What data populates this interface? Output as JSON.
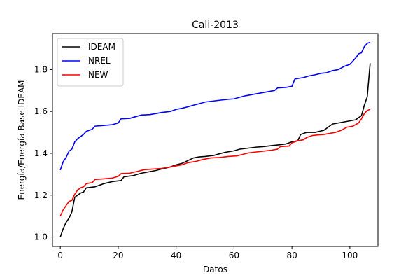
{
  "chart_data": {
    "type": "line",
    "title": "Cali-2013",
    "xlabel": "Datos",
    "ylabel": "Energía/Energía Base IDEAM",
    "xlim": [
      -2.7,
      109.7
    ],
    "ylim": [
      0.955,
      1.972
    ],
    "xticks": [
      0,
      20,
      40,
      60,
      80,
      100
    ],
    "yticks": [
      1.0,
      1.2,
      1.4,
      1.6,
      1.8
    ],
    "ytick_labels": [
      "1.0",
      "1.2",
      "1.4",
      "1.6",
      "1.8"
    ],
    "grid": false,
    "legend_position": "upper-left",
    "series": [
      {
        "name": "IDEAM",
        "color": "#000000",
        "points": [
          [
            0,
            1.0
          ],
          [
            1,
            1.04
          ],
          [
            2,
            1.07
          ],
          [
            3,
            1.09
          ],
          [
            4,
            1.12
          ],
          [
            5,
            1.19
          ],
          [
            6,
            1.2
          ],
          [
            7,
            1.21
          ],
          [
            8,
            1.215
          ],
          [
            9,
            1.235
          ],
          [
            12,
            1.24
          ],
          [
            15,
            1.255
          ],
          [
            18,
            1.265
          ],
          [
            21,
            1.27
          ],
          [
            22,
            1.288
          ],
          [
            25,
            1.293
          ],
          [
            28,
            1.305
          ],
          [
            30,
            1.31
          ],
          [
            33,
            1.318
          ],
          [
            35,
            1.325
          ],
          [
            38,
            1.335
          ],
          [
            40,
            1.345
          ],
          [
            42,
            1.352
          ],
          [
            44,
            1.365
          ],
          [
            46,
            1.378
          ],
          [
            48,
            1.383
          ],
          [
            50,
            1.385
          ],
          [
            53,
            1.39
          ],
          [
            55,
            1.398
          ],
          [
            57,
            1.405
          ],
          [
            60,
            1.412
          ],
          [
            62,
            1.42
          ],
          [
            65,
            1.425
          ],
          [
            68,
            1.43
          ],
          [
            70,
            1.432
          ],
          [
            73,
            1.437
          ],
          [
            75,
            1.44
          ],
          [
            78,
            1.445
          ],
          [
            80,
            1.455
          ],
          [
            82,
            1.46
          ],
          [
            83,
            1.49
          ],
          [
            85,
            1.5
          ],
          [
            88,
            1.5
          ],
          [
            91,
            1.51
          ],
          [
            93,
            1.53
          ],
          [
            94,
            1.54
          ],
          [
            96,
            1.545
          ],
          [
            98,
            1.55
          ],
          [
            100,
            1.555
          ],
          [
            102,
            1.56
          ],
          [
            104,
            1.58
          ],
          [
            105,
            1.63
          ],
          [
            106,
            1.67
          ],
          [
            107,
            1.83
          ]
        ]
      },
      {
        "name": "NREL",
        "color": "#0000ff",
        "points": [
          [
            0,
            1.32
          ],
          [
            1,
            1.36
          ],
          [
            2,
            1.38
          ],
          [
            3,
            1.41
          ],
          [
            4,
            1.42
          ],
          [
            5,
            1.455
          ],
          [
            6,
            1.47
          ],
          [
            7,
            1.48
          ],
          [
            8,
            1.49
          ],
          [
            9,
            1.505
          ],
          [
            11,
            1.515
          ],
          [
            12,
            1.53
          ],
          [
            15,
            1.533
          ],
          [
            18,
            1.537
          ],
          [
            20,
            1.545
          ],
          [
            21,
            1.565
          ],
          [
            24,
            1.567
          ],
          [
            26,
            1.575
          ],
          [
            28,
            1.583
          ],
          [
            31,
            1.585
          ],
          [
            33,
            1.59
          ],
          [
            35,
            1.595
          ],
          [
            38,
            1.6
          ],
          [
            40,
            1.61
          ],
          [
            42,
            1.615
          ],
          [
            44,
            1.622
          ],
          [
            46,
            1.63
          ],
          [
            48,
            1.637
          ],
          [
            50,
            1.645
          ],
          [
            53,
            1.65
          ],
          [
            56,
            1.655
          ],
          [
            58,
            1.658
          ],
          [
            60,
            1.66
          ],
          [
            62,
            1.668
          ],
          [
            64,
            1.675
          ],
          [
            66,
            1.68
          ],
          [
            68,
            1.685
          ],
          [
            70,
            1.69
          ],
          [
            72,
            1.695
          ],
          [
            74,
            1.7
          ],
          [
            75,
            1.712
          ],
          [
            78,
            1.715
          ],
          [
            80,
            1.72
          ],
          [
            81,
            1.755
          ],
          [
            84,
            1.762
          ],
          [
            86,
            1.77
          ],
          [
            88,
            1.775
          ],
          [
            90,
            1.782
          ],
          [
            92,
            1.785
          ],
          [
            94,
            1.795
          ],
          [
            96,
            1.8
          ],
          [
            98,
            1.815
          ],
          [
            100,
            1.825
          ],
          [
            101,
            1.84
          ],
          [
            102,
            1.855
          ],
          [
            103,
            1.875
          ],
          [
            104,
            1.88
          ],
          [
            105,
            1.91
          ],
          [
            106,
            1.925
          ],
          [
            107,
            1.93
          ]
        ]
      },
      {
        "name": "NEW",
        "color": "#ff0000",
        "points": [
          [
            0,
            1.1
          ],
          [
            1,
            1.13
          ],
          [
            2,
            1.15
          ],
          [
            3,
            1.17
          ],
          [
            4,
            1.175
          ],
          [
            5,
            1.205
          ],
          [
            6,
            1.225
          ],
          [
            7,
            1.235
          ],
          [
            8,
            1.24
          ],
          [
            9,
            1.255
          ],
          [
            11,
            1.26
          ],
          [
            12,
            1.275
          ],
          [
            15,
            1.278
          ],
          [
            18,
            1.282
          ],
          [
            20,
            1.29
          ],
          [
            21,
            1.303
          ],
          [
            24,
            1.305
          ],
          [
            27,
            1.315
          ],
          [
            29,
            1.322
          ],
          [
            32,
            1.325
          ],
          [
            35,
            1.328
          ],
          [
            38,
            1.335
          ],
          [
            40,
            1.34
          ],
          [
            42,
            1.345
          ],
          [
            44,
            1.355
          ],
          [
            47,
            1.362
          ],
          [
            49,
            1.37
          ],
          [
            52,
            1.378
          ],
          [
            55,
            1.38
          ],
          [
            58,
            1.385
          ],
          [
            61,
            1.388
          ],
          [
            63,
            1.395
          ],
          [
            65,
            1.402
          ],
          [
            68,
            1.407
          ],
          [
            70,
            1.41
          ],
          [
            73,
            1.415
          ],
          [
            75,
            1.42
          ],
          [
            76,
            1.432
          ],
          [
            79,
            1.435
          ],
          [
            80,
            1.45
          ],
          [
            82,
            1.46
          ],
          [
            84,
            1.465
          ],
          [
            85,
            1.475
          ],
          [
            87,
            1.485
          ],
          [
            89,
            1.488
          ],
          [
            91,
            1.49
          ],
          [
            93,
            1.495
          ],
          [
            95,
            1.5
          ],
          [
            97,
            1.51
          ],
          [
            99,
            1.525
          ],
          [
            101,
            1.53
          ],
          [
            103,
            1.545
          ],
          [
            104,
            1.565
          ],
          [
            105,
            1.59
          ],
          [
            106,
            1.605
          ],
          [
            107,
            1.61
          ]
        ]
      }
    ]
  }
}
